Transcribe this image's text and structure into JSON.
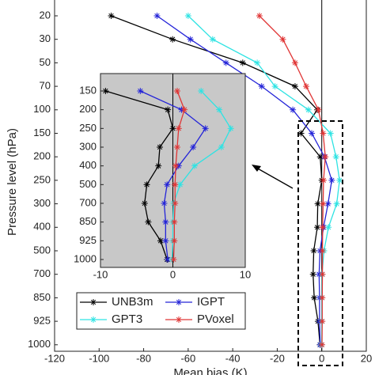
{
  "chart_data": {
    "type": "line",
    "xlabel": "Mean bias (K)",
    "ylabel": "Pressure level (hPa)",
    "categories": [
      20,
      30,
      50,
      70,
      100,
      150,
      200,
      250,
      300,
      400,
      500,
      700,
      850,
      925,
      1000
    ],
    "xlim": [
      -120,
      20
    ],
    "xticks": [
      -120,
      -100,
      -80,
      -60,
      -40,
      -20,
      0,
      20
    ],
    "series": [
      {
        "name": "UNB3m",
        "color": "#000000",
        "values": [
          -94.6,
          -67,
          -35.5,
          -12,
          -2,
          -9.3,
          -0.7,
          0,
          -1.8,
          -2,
          -3.6,
          -3.9,
          -3.4,
          -1.7,
          -0.8
        ]
      },
      {
        "name": "IGPT",
        "color": "#2424d8",
        "values": [
          -74,
          -59,
          -43,
          -27,
          -13,
          -4.5,
          1.2,
          4.5,
          2.8,
          0.8,
          -0.8,
          -1.2,
          -1,
          -1,
          -0.7
        ]
      },
      {
        "name": "GPT3",
        "color": "#2ee3e3",
        "values": [
          -60,
          -49,
          -29,
          -21,
          -6,
          3.9,
          6.4,
          8,
          6.7,
          3,
          1,
          0.1,
          0,
          0,
          -0.1
        ]
      },
      {
        "name": "PVoxel",
        "color": "#e03535",
        "values": [
          -28,
          -17.5,
          -12,
          -7,
          -1.5,
          0.6,
          1.6,
          0.8,
          0.6,
          0.4,
          0.3,
          0.3,
          0.2,
          0.2,
          0.1
        ]
      }
    ],
    "inset": {
      "xlim": [
        -10,
        10
      ],
      "xticks": [
        -10,
        0,
        10
      ],
      "ylim": [
        150,
        1000
      ]
    }
  }
}
